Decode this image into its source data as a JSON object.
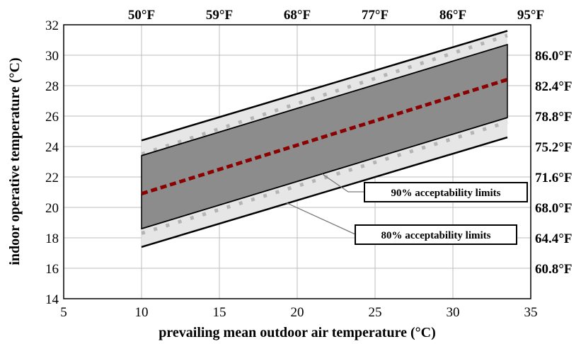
{
  "chart_data": {
    "type": "line",
    "xlabel": "prevailing mean outdoor air temperature (°C)",
    "ylabel": "indoor operative temperature (°C)",
    "xlim": [
      5,
      35
    ],
    "ylim": [
      14,
      32
    ],
    "x_ticks": [
      5,
      10,
      15,
      20,
      25,
      30,
      35
    ],
    "y_ticks": [
      14,
      16,
      18,
      20,
      22,
      24,
      26,
      28,
      30,
      32
    ],
    "x_tick_labels_top": [
      "50°F",
      "59°F",
      "68°F",
      "77°F",
      "86°F",
      "95°F"
    ],
    "x_tick_positions_top": [
      10,
      15,
      20,
      25,
      30,
      35
    ],
    "y_tick_labels_right": [
      "60.8°F",
      "64.4°F",
      "68.0°F",
      "71.6°F",
      "75.2°F",
      "78.8°F",
      "82.4°F",
      "86.0°F"
    ],
    "y_tick_positions_right": [
      16,
      18,
      20,
      22,
      24,
      26,
      28,
      30
    ],
    "grid": true,
    "series": [
      {
        "key": "upper80",
        "x": [
          10,
          33.5
        ],
        "y": [
          24.4,
          31.6
        ]
      },
      {
        "key": "upper90",
        "x": [
          10,
          33.5
        ],
        "y": [
          23.4,
          30.7
        ]
      },
      {
        "key": "neutral",
        "x": [
          10,
          33.5
        ],
        "y": [
          20.9,
          28.4
        ]
      },
      {
        "key": "lower90",
        "x": [
          10,
          33.5
        ],
        "y": [
          18.6,
          25.9
        ]
      },
      {
        "key": "lower80",
        "x": [
          10,
          33.5
        ],
        "y": [
          17.4,
          24.6
        ]
      }
    ],
    "annotations": [
      {
        "text": "90% acceptability limits",
        "point": [
          21.6,
          22.2
        ]
      },
      {
        "text": "80% acceptability limits",
        "point": [
          19.3,
          20.3
        ]
      }
    ],
    "colors": {
      "band80": "#e6e6e6",
      "band90": "#8c8c8c",
      "neutral": "#8b0000",
      "limit_line": "#000000",
      "grid": "#bdbdbd",
      "dots": "#b4b4b4"
    }
  }
}
